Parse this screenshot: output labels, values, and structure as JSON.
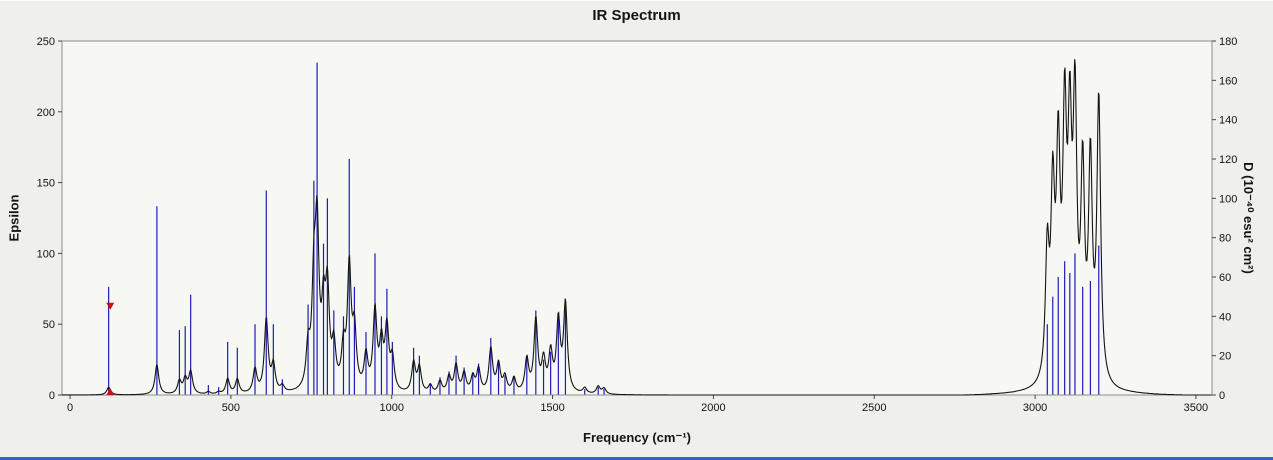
{
  "title": "IR Spectrum",
  "axes": {
    "left_label": "Epsilon",
    "right_label": "D (10⁻⁴⁰ esu² cm²)",
    "x_label": "Frequency (cm⁻¹)"
  },
  "chart_data": {
    "type": "line",
    "title": "IR Spectrum",
    "xlabel": "Frequency (cm⁻¹)",
    "ylabel_left": "Epsilon",
    "ylabel_right": "D (10⁻⁴⁰ esu² cm²)",
    "x_range": [
      -25,
      3550
    ],
    "left_range": [
      0,
      250
    ],
    "right_range": [
      0,
      180
    ],
    "x_ticks": [
      0,
      500,
      1000,
      1500,
      2000,
      2500,
      3000,
      3500
    ],
    "left_ticks": [
      0,
      50,
      100,
      150,
      200,
      250
    ],
    "right_ticks": [
      0,
      20,
      40,
      60,
      80,
      100,
      120,
      140,
      160,
      180
    ],
    "grid": false,
    "legend": "none",
    "stick_color": "#1c1cb4",
    "curve_color": "#141414",
    "marker_color": "#cc1111",
    "frame_color": "#8c8c8c",
    "plot_bg": "#f7f8f3",
    "marker": {
      "x": 125,
      "epsilon_top": 63,
      "epsilon_bottom": 2
    },
    "broadening_hwhm": 7,
    "epsilon_scale": 0.00082,
    "sticks_units": "right axis D (10^-40 esu^2 cm^2), curve = Lorentzian-broadened Epsilon (left axis)",
    "sticks": [
      [
        120,
        55
      ],
      [
        270,
        96
      ],
      [
        340,
        33
      ],
      [
        358,
        35
      ],
      [
        375,
        51
      ],
      [
        430,
        5
      ],
      [
        462,
        4
      ],
      [
        490,
        27
      ],
      [
        520,
        24
      ],
      [
        575,
        36
      ],
      [
        610,
        104
      ],
      [
        632,
        36
      ],
      [
        660,
        8
      ],
      [
        740,
        46
      ],
      [
        758,
        109
      ],
      [
        768,
        169
      ],
      [
        788,
        77
      ],
      [
        800,
        100
      ],
      [
        820,
        43
      ],
      [
        850,
        40
      ],
      [
        868,
        120
      ],
      [
        884,
        55
      ],
      [
        920,
        32
      ],
      [
        948,
        72
      ],
      [
        968,
        40
      ],
      [
        985,
        54
      ],
      [
        1002,
        27
      ],
      [
        1068,
        24
      ],
      [
        1086,
        20
      ],
      [
        1120,
        6
      ],
      [
        1150,
        9
      ],
      [
        1178,
        12
      ],
      [
        1200,
        20
      ],
      [
        1225,
        14
      ],
      [
        1252,
        11
      ],
      [
        1270,
        16
      ],
      [
        1308,
        29
      ],
      [
        1332,
        18
      ],
      [
        1352,
        10
      ],
      [
        1380,
        9
      ],
      [
        1420,
        20
      ],
      [
        1448,
        43
      ],
      [
        1472,
        18
      ],
      [
        1494,
        22
      ],
      [
        1518,
        40
      ],
      [
        1540,
        49
      ],
      [
        1600,
        3
      ],
      [
        1642,
        4
      ],
      [
        1660,
        3
      ],
      [
        3038,
        36
      ],
      [
        3055,
        50
      ],
      [
        3072,
        60
      ],
      [
        3092,
        68
      ],
      [
        3108,
        62
      ],
      [
        3124,
        72
      ],
      [
        3148,
        55
      ],
      [
        3172,
        58
      ],
      [
        3198,
        76
      ]
    ]
  }
}
